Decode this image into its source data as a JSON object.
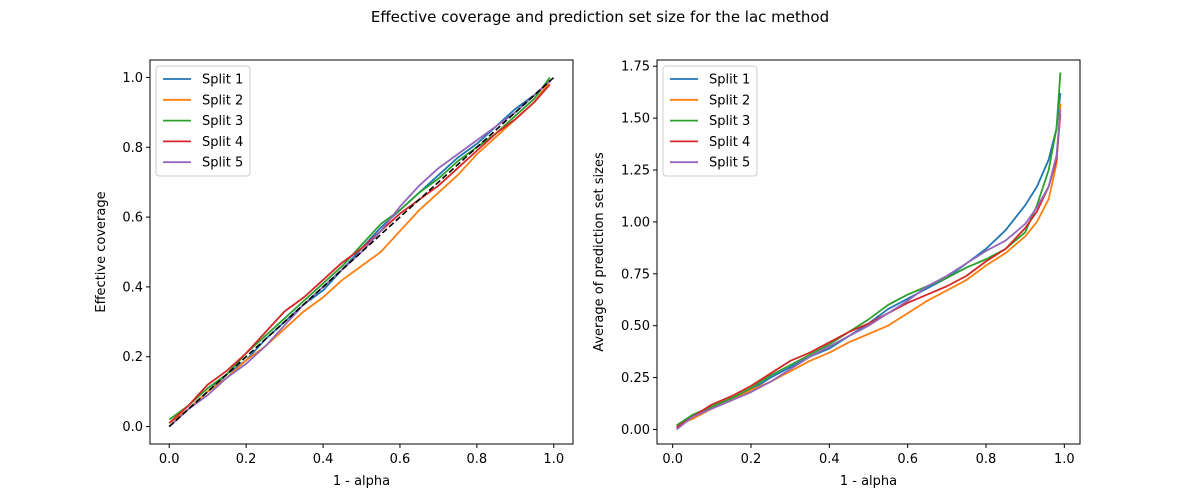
{
  "figure": {
    "suptitle": "Effective coverage and prediction set size for the lac method"
  },
  "series_meta": [
    {
      "name": "Split 1",
      "color": "#1f77b4"
    },
    {
      "name": "Split 2",
      "color": "#ff7f0e"
    },
    {
      "name": "Split 3",
      "color": "#2ca02c"
    },
    {
      "name": "Split 4",
      "color": "#d62728"
    },
    {
      "name": "Split 5",
      "color": "#9467bd"
    }
  ],
  "chart_data": [
    {
      "type": "line",
      "title": "",
      "xlabel": "1 - alpha",
      "ylabel": "Effective coverage",
      "xlim": [
        -0.05,
        1.05
      ],
      "ylim": [
        -0.05,
        1.05
      ],
      "xticks": [
        0.0,
        0.2,
        0.4,
        0.6,
        0.8,
        1.0
      ],
      "xtick_labels": [
        "0.0",
        "0.2",
        "0.4",
        "0.6",
        "0.8",
        "1.0"
      ],
      "yticks": [
        0.0,
        0.2,
        0.4,
        0.6,
        0.8,
        1.0
      ],
      "ytick_labels": [
        "0.0",
        "0.2",
        "0.4",
        "0.6",
        "0.8",
        "1.0"
      ],
      "legend_position": "top-left",
      "grid": false,
      "reference_line": {
        "style": "dashed",
        "color": "#000000",
        "x": [
          0.0,
          1.0
        ],
        "y": [
          0.0,
          1.0
        ]
      },
      "series": [
        {
          "name": "Split 1",
          "color": "#1f77b4",
          "x": [
            0.0,
            0.05,
            0.1,
            0.15,
            0.2,
            0.25,
            0.3,
            0.35,
            0.4,
            0.45,
            0.5,
            0.55,
            0.6,
            0.65,
            0.7,
            0.75,
            0.8,
            0.85,
            0.9,
            0.95,
            0.99
          ],
          "y": [
            0.0,
            0.05,
            0.1,
            0.15,
            0.19,
            0.25,
            0.3,
            0.35,
            0.39,
            0.45,
            0.51,
            0.57,
            0.62,
            0.67,
            0.72,
            0.77,
            0.81,
            0.86,
            0.91,
            0.95,
            0.99
          ]
        },
        {
          "name": "Split 2",
          "color": "#ff7f0e",
          "x": [
            0.0,
            0.05,
            0.1,
            0.15,
            0.2,
            0.25,
            0.3,
            0.35,
            0.4,
            0.45,
            0.5,
            0.55,
            0.6,
            0.65,
            0.7,
            0.75,
            0.8,
            0.85,
            0.9,
            0.95,
            0.99
          ],
          "y": [
            0.01,
            0.05,
            0.1,
            0.14,
            0.19,
            0.23,
            0.28,
            0.33,
            0.37,
            0.42,
            0.46,
            0.5,
            0.56,
            0.62,
            0.67,
            0.72,
            0.78,
            0.83,
            0.88,
            0.93,
            0.99
          ]
        },
        {
          "name": "Split 3",
          "color": "#2ca02c",
          "x": [
            0.0,
            0.05,
            0.1,
            0.15,
            0.2,
            0.25,
            0.3,
            0.35,
            0.4,
            0.45,
            0.5,
            0.55,
            0.6,
            0.65,
            0.7,
            0.75,
            0.8,
            0.85,
            0.9,
            0.95,
            0.99
          ],
          "y": [
            0.02,
            0.06,
            0.11,
            0.15,
            0.21,
            0.26,
            0.31,
            0.36,
            0.41,
            0.46,
            0.52,
            0.58,
            0.62,
            0.67,
            0.71,
            0.76,
            0.8,
            0.84,
            0.89,
            0.94,
            1.0
          ]
        },
        {
          "name": "Split 4",
          "color": "#d62728",
          "x": [
            0.0,
            0.05,
            0.1,
            0.15,
            0.2,
            0.25,
            0.3,
            0.35,
            0.4,
            0.45,
            0.5,
            0.55,
            0.6,
            0.65,
            0.7,
            0.75,
            0.8,
            0.85,
            0.9,
            0.95,
            0.99
          ],
          "y": [
            0.01,
            0.06,
            0.12,
            0.16,
            0.21,
            0.27,
            0.33,
            0.37,
            0.42,
            0.47,
            0.51,
            0.56,
            0.61,
            0.65,
            0.69,
            0.74,
            0.79,
            0.84,
            0.88,
            0.93,
            0.98
          ]
        },
        {
          "name": "Split 5",
          "color": "#9467bd",
          "x": [
            0.0,
            0.05,
            0.1,
            0.15,
            0.2,
            0.25,
            0.3,
            0.35,
            0.4,
            0.45,
            0.5,
            0.55,
            0.6,
            0.65,
            0.7,
            0.75,
            0.8,
            0.85,
            0.9,
            0.95,
            0.99
          ],
          "y": [
            0.0,
            0.05,
            0.09,
            0.14,
            0.18,
            0.23,
            0.29,
            0.35,
            0.4,
            0.45,
            0.5,
            0.56,
            0.63,
            0.69,
            0.74,
            0.78,
            0.82,
            0.86,
            0.9,
            0.95,
            0.99
          ]
        }
      ]
    },
    {
      "type": "line",
      "title": "",
      "xlabel": "1 - alpha",
      "ylabel": "Average of prediction set sizes",
      "xlim": [
        -0.04,
        1.04
      ],
      "ylim": [
        -0.07,
        1.78
      ],
      "xticks": [
        0.0,
        0.2,
        0.4,
        0.6,
        0.8,
        1.0
      ],
      "xtick_labels": [
        "0.0",
        "0.2",
        "0.4",
        "0.6",
        "0.8",
        "1.0"
      ],
      "yticks": [
        0.0,
        0.25,
        0.5,
        0.75,
        1.0,
        1.25,
        1.5,
        1.75
      ],
      "ytick_labels": [
        "0.00",
        "0.25",
        "0.50",
        "0.75",
        "1.00",
        "1.25",
        "1.50",
        "1.75"
      ],
      "legend_position": "top-left",
      "grid": false,
      "series": [
        {
          "name": "Split 1",
          "color": "#1f77b4",
          "x": [
            0.01,
            0.05,
            0.1,
            0.15,
            0.2,
            0.25,
            0.3,
            0.35,
            0.4,
            0.45,
            0.5,
            0.55,
            0.6,
            0.65,
            0.7,
            0.75,
            0.8,
            0.85,
            0.9,
            0.93,
            0.96,
            0.98,
            0.99
          ],
          "y": [
            0.01,
            0.06,
            0.11,
            0.15,
            0.19,
            0.25,
            0.3,
            0.35,
            0.39,
            0.45,
            0.51,
            0.58,
            0.63,
            0.68,
            0.73,
            0.8,
            0.87,
            0.96,
            1.08,
            1.17,
            1.3,
            1.45,
            1.62
          ]
        },
        {
          "name": "Split 2",
          "color": "#ff7f0e",
          "x": [
            0.01,
            0.05,
            0.1,
            0.15,
            0.2,
            0.25,
            0.3,
            0.35,
            0.4,
            0.45,
            0.5,
            0.55,
            0.6,
            0.65,
            0.7,
            0.75,
            0.8,
            0.85,
            0.9,
            0.93,
            0.96,
            0.98,
            0.99
          ],
          "y": [
            0.02,
            0.05,
            0.1,
            0.14,
            0.19,
            0.23,
            0.28,
            0.33,
            0.37,
            0.42,
            0.46,
            0.5,
            0.56,
            0.62,
            0.67,
            0.72,
            0.79,
            0.85,
            0.93,
            1.0,
            1.11,
            1.28,
            1.57
          ]
        },
        {
          "name": "Split 3",
          "color": "#2ca02c",
          "x": [
            0.01,
            0.05,
            0.1,
            0.15,
            0.2,
            0.25,
            0.3,
            0.35,
            0.4,
            0.45,
            0.5,
            0.55,
            0.6,
            0.65,
            0.7,
            0.75,
            0.8,
            0.85,
            0.9,
            0.93,
            0.96,
            0.98,
            0.99
          ],
          "y": [
            0.02,
            0.07,
            0.11,
            0.15,
            0.2,
            0.26,
            0.31,
            0.36,
            0.41,
            0.47,
            0.53,
            0.6,
            0.65,
            0.69,
            0.73,
            0.78,
            0.82,
            0.87,
            0.95,
            1.08,
            1.25,
            1.45,
            1.72
          ]
        },
        {
          "name": "Split 4",
          "color": "#d62728",
          "x": [
            0.01,
            0.05,
            0.1,
            0.15,
            0.2,
            0.25,
            0.3,
            0.35,
            0.4,
            0.45,
            0.5,
            0.55,
            0.6,
            0.65,
            0.7,
            0.75,
            0.8,
            0.85,
            0.9,
            0.93,
            0.96,
            0.98,
            0.99
          ],
          "y": [
            0.01,
            0.06,
            0.12,
            0.16,
            0.21,
            0.27,
            0.33,
            0.37,
            0.42,
            0.47,
            0.51,
            0.56,
            0.61,
            0.65,
            0.69,
            0.74,
            0.81,
            0.87,
            0.97,
            1.05,
            1.17,
            1.3,
            1.52
          ]
        },
        {
          "name": "Split 5",
          "color": "#9467bd",
          "x": [
            0.01,
            0.05,
            0.1,
            0.15,
            0.2,
            0.25,
            0.3,
            0.35,
            0.4,
            0.45,
            0.5,
            0.55,
            0.6,
            0.65,
            0.7,
            0.75,
            0.8,
            0.85,
            0.9,
            0.93,
            0.96,
            0.98,
            0.99
          ],
          "y": [
            0.0,
            0.06,
            0.1,
            0.14,
            0.18,
            0.23,
            0.29,
            0.35,
            0.4,
            0.45,
            0.5,
            0.56,
            0.62,
            0.69,
            0.74,
            0.8,
            0.86,
            0.91,
            0.99,
            1.07,
            1.17,
            1.32,
            1.54
          ]
        }
      ]
    }
  ]
}
